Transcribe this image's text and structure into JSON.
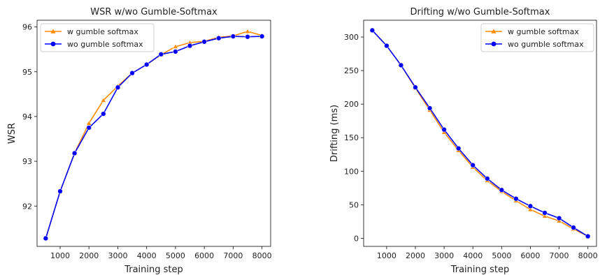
{
  "chart_data": [
    {
      "type": "line",
      "title": "WSR w/wo Gumble-Softmax",
      "xlabel": "Training step",
      "ylabel": "WSR",
      "x": [
        500,
        1000,
        1500,
        2000,
        2500,
        3000,
        3500,
        4000,
        4500,
        5000,
        5500,
        6000,
        6500,
        7000,
        7500,
        8000
      ],
      "xticks": [
        1000,
        2000,
        3000,
        4000,
        5000,
        6000,
        7000,
        8000
      ],
      "yticks": [
        92,
        93,
        94,
        95,
        96
      ],
      "xlim": [
        200,
        8300
      ],
      "ylim": [
        91.1,
        96.15
      ],
      "grid": false,
      "legend_position": "top-left",
      "series": [
        {
          "name": "w gumble softmax",
          "color": "#ff8c00",
          "marker": "triangle",
          "values": [
            91.28,
            92.33,
            93.18,
            93.85,
            94.36,
            94.68,
            94.97,
            95.16,
            95.38,
            95.56,
            95.65,
            95.68,
            95.77,
            95.8,
            95.9,
            95.81
          ]
        },
        {
          "name": "wo gumble softmax",
          "color": "#0000ff",
          "marker": "circle",
          "values": [
            91.28,
            92.33,
            93.18,
            93.75,
            94.06,
            94.65,
            94.97,
            95.16,
            95.39,
            95.45,
            95.58,
            95.67,
            95.75,
            95.79,
            95.78,
            95.79
          ]
        }
      ]
    },
    {
      "type": "line",
      "title": "Drifting w/wo Gumble-Softmax",
      "xlabel": "Training step",
      "ylabel": "Drifting (ms)",
      "x": [
        500,
        1000,
        1500,
        2000,
        2500,
        3000,
        3500,
        4000,
        4500,
        5000,
        5500,
        6000,
        6500,
        7000,
        7500,
        8000
      ],
      "xticks": [
        1000,
        2000,
        3000,
        4000,
        5000,
        6000,
        7000,
        8000
      ],
      "yticks": [
        0,
        50,
        100,
        150,
        200,
        250,
        300
      ],
      "xlim": [
        200,
        8300
      ],
      "ylim": [
        -12,
        325
      ],
      "grid": false,
      "legend_position": "top-right",
      "series": [
        {
          "name": "w gumble softmax",
          "color": "#ff8c00",
          "marker": "triangle",
          "values": [
            310,
            287,
            258,
            224,
            191,
            158,
            131,
            106,
            86,
            70,
            56,
            43,
            33,
            26,
            14,
            3
          ]
        },
        {
          "name": "wo gumble softmax",
          "color": "#0000ff",
          "marker": "circle",
          "values": [
            310,
            287,
            258,
            225,
            194,
            162,
            134,
            109,
            89,
            72,
            59,
            48,
            38,
            30,
            16,
            3
          ]
        }
      ]
    }
  ]
}
